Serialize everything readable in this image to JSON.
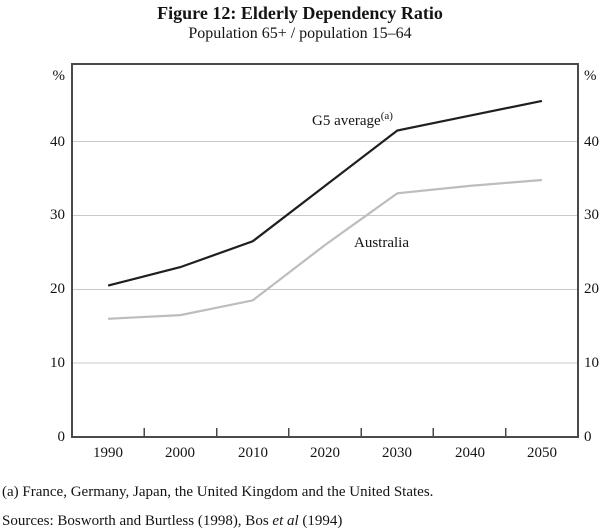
{
  "figure": {
    "title": "Figure 12: Elderly Dependency Ratio",
    "subtitle": "Population 65+ / population 15–64",
    "footnote": "(a) France, Germany, Japan, the United Kingdom and the United States.",
    "sources_prefix": "Sources: Bosworth and Burtless (1998), Bos ",
    "sources_italic": "et al",
    "sources_suffix": " (1994)"
  },
  "chart_data": {
    "type": "line",
    "title": "Figure 12: Elderly Dependency Ratio",
    "subtitle": "Population 65+ / population 15–64",
    "x": [
      1990,
      2000,
      2010,
      2020,
      2030,
      2040,
      2050
    ],
    "series": [
      {
        "name": "G5 average",
        "label": "G5 average",
        "label_superscript": "(a)",
        "color": "#1f1f1f",
        "values": [
          20.5,
          23.0,
          26.5,
          34.0,
          41.5,
          43.5,
          45.5
        ]
      },
      {
        "name": "Australia",
        "label": "Australia",
        "label_superscript": "",
        "color": "#bdbdbd",
        "values": [
          16.0,
          16.5,
          18.5,
          26.0,
          33.0,
          34.0,
          34.8
        ]
      }
    ],
    "unit_left": "%",
    "unit_right": "%",
    "y_ticks": [
      0,
      10,
      20,
      30,
      40
    ],
    "ylim": [
      0,
      50.5
    ],
    "xlim": [
      1985,
      2055
    ],
    "x_tick_marks": [
      1995,
      2005,
      2015,
      2025,
      2035,
      2045
    ],
    "grid": "horizontal",
    "legend_position": "inline-labels",
    "colors": {
      "axis_box": "#4a4a4a",
      "gridline": "#c9c9c9",
      "text": "#141414"
    }
  }
}
